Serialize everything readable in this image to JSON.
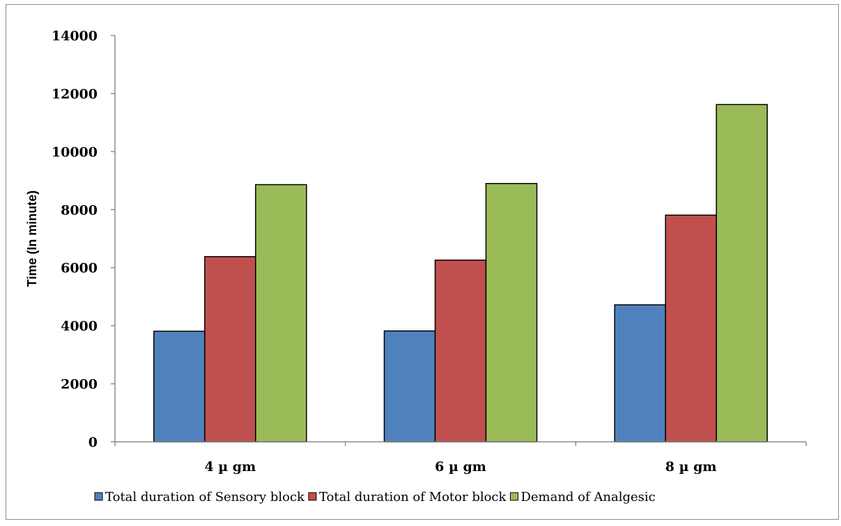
{
  "chart_data": {
    "type": "bar",
    "categories": [
      "4 µ gm",
      "6 µ gm",
      "8 µ gm"
    ],
    "series": [
      {
        "name": "Total duration of Sensory block",
        "values": [
          3810,
          3820,
          4720
        ],
        "color": "#4f81bd"
      },
      {
        "name": "Total duration of Motor block",
        "values": [
          6380,
          6260,
          7810
        ],
        "color": "#c0504d"
      },
      {
        "name": "Demand of Analgesic",
        "values": [
          8860,
          8900,
          11620
        ],
        "color": "#9bbb59"
      }
    ],
    "title": "",
    "xlabel": "",
    "ylabel": "Time (In minute)",
    "ylim": [
      0,
      14000
    ],
    "yticks": [
      0,
      2000,
      4000,
      6000,
      8000,
      10000,
      12000,
      14000
    ],
    "grid": false,
    "legend_position": "bottom"
  }
}
